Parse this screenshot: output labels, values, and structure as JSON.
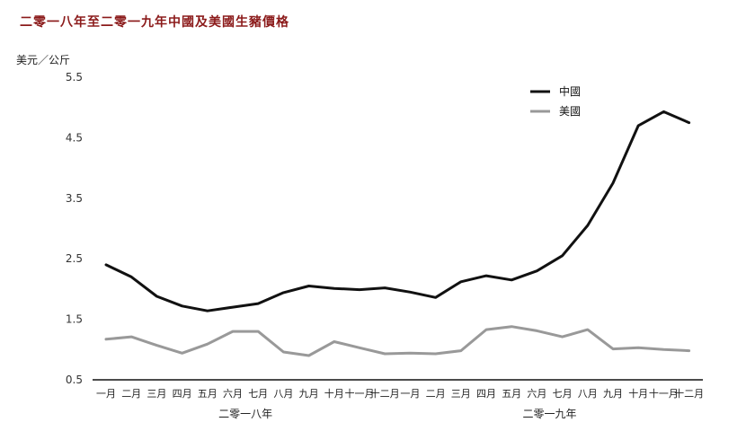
{
  "chart_data": {
    "type": "line",
    "title": "二零一八年至二零一九年中國及美國生豬價格",
    "ylabel": "美元／公斤",
    "ylim": [
      0.5,
      5.5
    ],
    "yticks": [
      "5.5",
      "4.5",
      "3.5",
      "2.5",
      "1.5",
      "0.5"
    ],
    "categories": [
      "一月",
      "二月",
      "三月",
      "四月",
      "五月",
      "六月",
      "七月",
      "八月",
      "九月",
      "十月",
      "十一月",
      "十二月",
      "一月",
      "二月",
      "三月",
      "四月",
      "五月",
      "六月",
      "七月",
      "八月",
      "九月",
      "十月",
      "十一月",
      "十二月"
    ],
    "year_groups": [
      "二零一八年",
      "二零一九年"
    ],
    "grid": false,
    "legend_position": "top-right",
    "series": [
      {
        "name": "中國",
        "color": "#111111",
        "values": [
          2.4,
          2.2,
          1.88,
          1.72,
          1.64,
          1.7,
          1.76,
          1.94,
          2.05,
          2.01,
          1.99,
          2.02,
          1.95,
          1.86,
          2.12,
          2.22,
          2.15,
          2.3,
          2.55,
          3.05,
          3.75,
          4.7,
          4.93,
          4.75
        ]
      },
      {
        "name": "美國",
        "color": "#999999",
        "values": [
          1.17,
          1.21,
          1.07,
          0.94,
          1.09,
          1.3,
          1.3,
          0.96,
          0.9,
          1.13,
          1.03,
          0.93,
          0.94,
          0.93,
          0.98,
          1.33,
          1.38,
          1.31,
          1.21,
          1.33,
          1.01,
          1.03,
          1.0,
          0.98
        ]
      }
    ]
  }
}
